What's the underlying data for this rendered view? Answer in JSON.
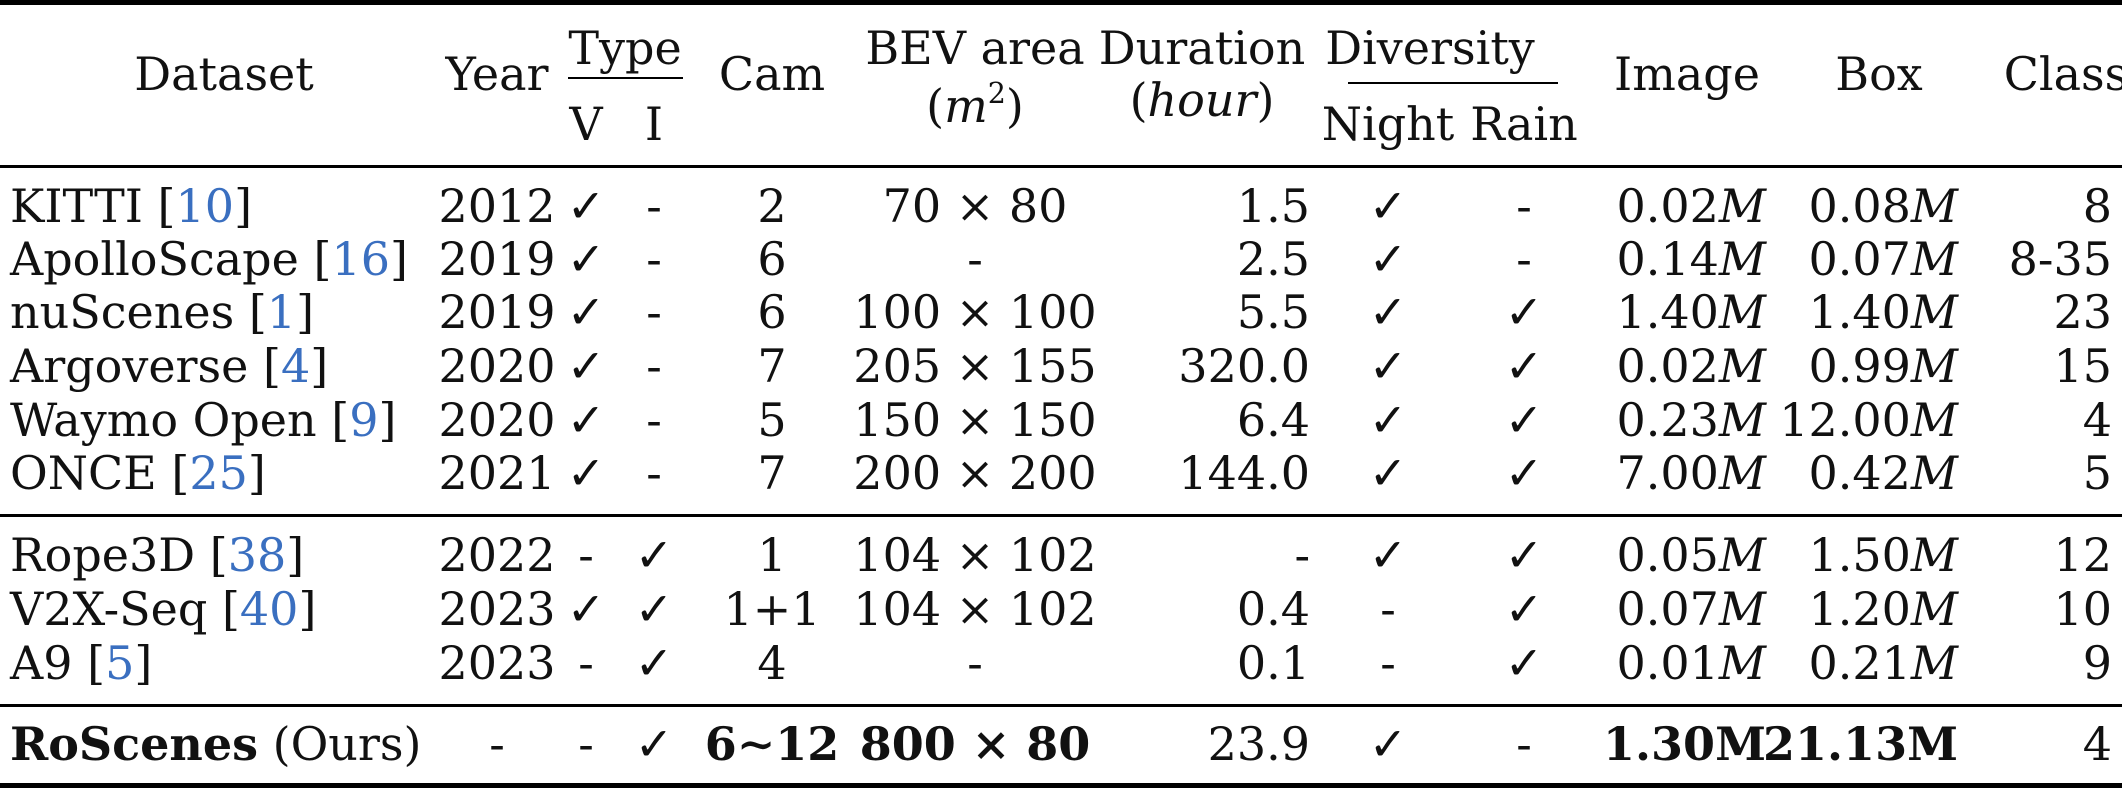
{
  "header": {
    "dataset": "Dataset",
    "year": "Year",
    "type": "Type",
    "type_v": "V",
    "type_i": "I",
    "cam": "Cam",
    "bev": "BEV area",
    "bev_unit_base": "m",
    "bev_unit_exp": "2",
    "duration": "Duration",
    "duration_unit": "hour",
    "diversity": "Diversity",
    "night": "Night",
    "rain": "Rain",
    "image": "Image",
    "box": "Box",
    "class": "Class"
  },
  "rows": [
    {
      "name": "KITTI",
      "ref": "10",
      "year": "2012",
      "v": "✓",
      "i": "-",
      "cam": "2",
      "bev": "70 × 80",
      "duration": "1.5",
      "night": "✓",
      "rain": "-",
      "image_num": "0.02",
      "image_unit": "M",
      "box_num": "0.08",
      "box_unit": "M",
      "class": "8"
    },
    {
      "name": "ApolloScape",
      "ref": "16",
      "year": "2019",
      "v": "✓",
      "i": "-",
      "cam": "6",
      "bev": "-",
      "duration": "2.5",
      "night": "✓",
      "rain": "-",
      "image_num": "0.14",
      "image_unit": "M",
      "box_num": "0.07",
      "box_unit": "M",
      "class": "8-35"
    },
    {
      "name": "nuScenes",
      "ref": "1",
      "year": "2019",
      "v": "✓",
      "i": "-",
      "cam": "6",
      "bev": "100 × 100",
      "duration": "5.5",
      "night": "✓",
      "rain": "✓",
      "image_num": "1.40",
      "image_unit": "M",
      "box_num": "1.40",
      "box_unit": "M",
      "class": "23"
    },
    {
      "name": "Argoverse",
      "ref": "4",
      "year": "2020",
      "v": "✓",
      "i": "-",
      "cam": "7",
      "bev": "205 × 155",
      "duration": "320.0",
      "night": "✓",
      "rain": "✓",
      "image_num": "0.02",
      "image_unit": "M",
      "box_num": "0.99",
      "box_unit": "M",
      "class": "15"
    },
    {
      "name": "Waymo Open",
      "ref": "9",
      "year": "2020",
      "v": "✓",
      "i": "-",
      "cam": "5",
      "bev": "150 × 150",
      "duration": "6.4",
      "night": "✓",
      "rain": "✓",
      "image_num": "0.23",
      "image_unit": "M",
      "box_num": "12.00",
      "box_unit": "M",
      "class": "4"
    },
    {
      "name": "ONCE",
      "ref": "25",
      "year": "2021",
      "v": "✓",
      "i": "-",
      "cam": "7",
      "bev": "200 × 200",
      "duration": "144.0",
      "night": "✓",
      "rain": "✓",
      "image_num": "7.00",
      "image_unit": "M",
      "box_num": "0.42",
      "box_unit": "M",
      "class": "5"
    },
    {
      "name": "Rope3D",
      "ref": "38",
      "year": "2022",
      "v": "-",
      "i": "✓",
      "cam": "1",
      "bev": "104 × 102",
      "duration": "-",
      "night": "✓",
      "rain": "✓",
      "image_num": "0.05",
      "image_unit": "M",
      "box_num": "1.50",
      "box_unit": "M",
      "class": "12"
    },
    {
      "name": "V2X-Seq",
      "ref": "40",
      "year": "2023",
      "v": "✓",
      "i": "✓",
      "cam": "1+1",
      "bev": "104 × 102",
      "duration": "0.4",
      "night": "-",
      "rain": "✓",
      "image_num": "0.07",
      "image_unit": "M",
      "box_num": "1.20",
      "box_unit": "M",
      "class": "10"
    },
    {
      "name": "A9",
      "ref": "5",
      "year": "2023",
      "v": "-",
      "i": "✓",
      "cam": "4",
      "bev": "-",
      "duration": "0.1",
      "night": "-",
      "rain": "✓",
      "image_num": "0.01",
      "image_unit": "M",
      "box_num": "0.21",
      "box_unit": "M",
      "class": "9"
    }
  ],
  "ours": {
    "name": "RoScenes",
    "suffix": "(Ours)",
    "year": "-",
    "v": "-",
    "i": "✓",
    "cam": "6∼12",
    "bev": "800 × 80",
    "duration": "23.9",
    "night": "✓",
    "rain": "-",
    "image": "1.30M",
    "box": "21.13M",
    "class": "4"
  }
}
